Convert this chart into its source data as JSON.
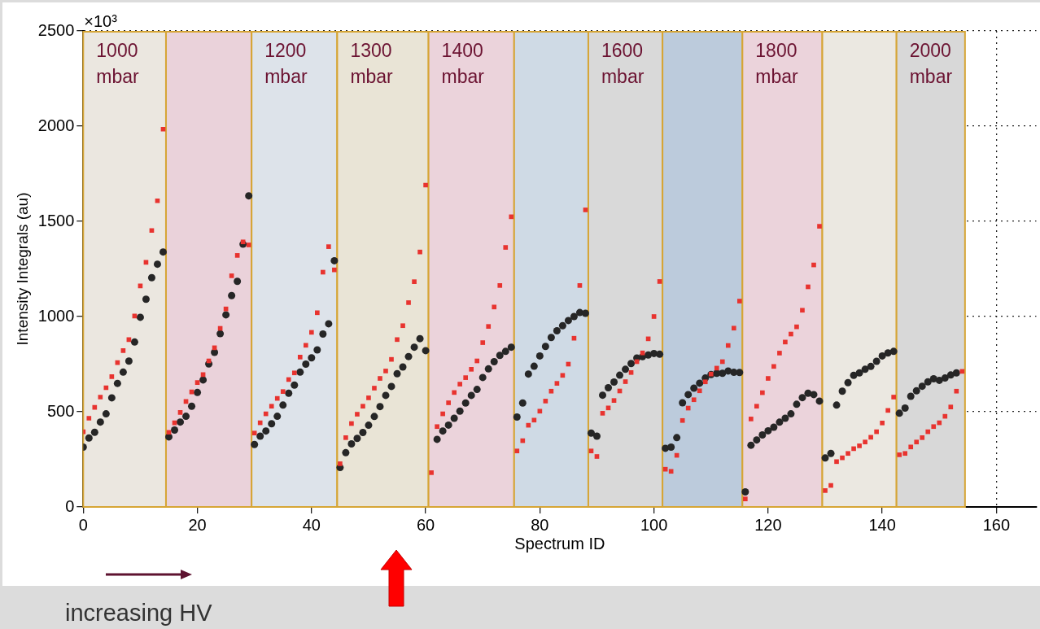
{
  "chart_data": {
    "type": "scatter",
    "xlabel": "Spectrum ID",
    "ylabel": "Intensity Integrals (au)",
    "x": [
      0,
      1,
      2,
      3,
      4,
      5,
      6,
      7,
      8,
      9,
      10,
      11,
      12,
      13,
      14,
      15,
      16,
      17,
      18,
      19,
      20,
      21,
      22,
      23,
      24,
      25,
      26,
      27,
      28,
      29,
      30,
      31,
      32,
      33,
      34,
      35,
      36,
      37,
      38,
      39,
      40,
      41,
      42,
      43,
      44,
      45,
      46,
      47,
      48,
      49,
      50,
      51,
      52,
      53,
      54,
      55,
      56,
      57,
      58,
      59,
      60,
      61,
      62,
      63,
      64,
      65,
      66,
      67,
      68,
      69,
      70,
      71,
      72,
      73,
      74,
      75,
      76,
      77,
      78,
      79,
      80,
      81,
      82,
      83,
      84,
      85,
      86,
      87,
      88,
      89,
      90,
      91,
      92,
      93,
      94,
      95,
      96,
      97,
      98,
      99,
      100,
      101,
      102,
      103,
      104,
      105,
      106,
      107,
      108,
      109,
      110,
      111,
      112,
      113,
      114,
      115,
      116,
      117,
      118,
      119,
      120,
      121,
      122,
      123,
      124,
      125,
      126,
      127,
      128,
      129,
      130,
      131,
      132,
      133,
      134,
      135,
      136,
      137,
      138,
      139,
      140,
      141,
      142,
      143,
      144,
      145,
      146,
      147,
      148,
      149,
      150,
      151,
      152,
      153,
      154
    ],
    "series": [
      {
        "color": "#262626",
        "marker": "circle",
        "values": [
          314,
          362,
          392,
          446,
          489,
          573,
          649,
          708,
          766,
          866,
          996,
          1091,
          1204,
          1275,
          1339,
          368,
          404,
          446,
          476,
          529,
          601,
          667,
          751,
          812,
          910,
          1009,
          1110,
          1185,
          1380,
          1634,
          328,
          372,
          399,
          437,
          476,
          535,
          597,
          640,
          708,
          750,
          783,
          825,
          908,
          962,
          1293,
          207,
          285,
          331,
          360,
          391,
          429,
          475,
          527,
          586,
          633,
          700,
          735,
          790,
          839,
          884,
          821,
          null,
          355,
          399,
          430,
          466,
          503,
          546,
          586,
          617,
          680,
          725,
          763,
          796,
          817,
          839,
          472,
          546,
          698,
          739,
          793,
          843,
          890,
          925,
          952,
          979,
          1000,
          1021,
          1017,
          388,
          372,
          587,
          626,
          656,
          692,
          723,
          753,
          782,
          789,
          798,
          806,
          802,
          308,
          314,
          364,
          547,
          590,
          624,
          650,
          677,
          695,
          702,
          702,
          714,
          707,
          706,
          79,
          324,
          352,
          378,
          400,
          419,
          445,
          466,
          489,
          539,
          574,
          597,
          590,
          556,
          257,
          281,
          535,
          608,
          653,
          691,
          704,
          723,
          738,
          765,
          793,
          809,
          817,
          492,
          519,
          581,
          610,
          634,
          657,
          673,
          665,
          677,
          693,
          704,
          null
        ]
      },
      {
        "color": "#e8332f",
        "marker": "square",
        "values": [
          395,
          466,
          523,
          577,
          626,
          684,
          758,
          821,
          879,
          1003,
          1161,
          1285,
          1452,
          1608,
          1984,
          392,
          442,
          496,
          554,
          604,
          653,
          695,
          767,
          836,
          938,
          1040,
          1214,
          1321,
          1392,
          1376,
          388,
          442,
          489,
          529,
          570,
          606,
          669,
          704,
          787,
          849,
          917,
          1020,
          1233,
          1367,
          1245,
          227,
          364,
          438,
          487,
          529,
          573,
          624,
          675,
          714,
          775,
          879,
          952,
          1073,
          1183,
          1339,
          1690,
          180,
          422,
          489,
          547,
          601,
          645,
          679,
          723,
          767,
          863,
          948,
          1050,
          1163,
          1363,
          1524,
          294,
          348,
          429,
          456,
          503,
          556,
          608,
          649,
          691,
          750,
          886,
          1163,
          1560,
          294,
          265,
          492,
          520,
          559,
          609,
          658,
          706,
          763,
          809,
          883,
          1000,
          1184,
          198,
          187,
          271,
          454,
          519,
          563,
          610,
          657,
          698,
          729,
          763,
          848,
          939,
          1081,
          42,
          462,
          529,
          600,
          675,
          738,
          808,
          866,
          908,
          946,
          1033,
          1156,
          1271,
          1474,
          86,
          113,
          238,
          258,
          281,
          306,
          321,
          341,
          366,
          395,
          441,
          507,
          577,
          274,
          281,
          315,
          341,
          364,
          395,
          422,
          442,
          476,
          525,
          608,
          712
        ]
      }
    ],
    "xlim": [
      0,
      167
    ],
    "xticks": [
      0,
      20,
      40,
      60,
      80,
      100,
      120,
      140,
      160
    ],
    "ylim": [
      0,
      2500
    ],
    "yticks": [
      0,
      500,
      1000,
      1500,
      2000,
      2500
    ],
    "grid": true,
    "bands": [
      {
        "axis": "x",
        "from": 0,
        "to": 14.5,
        "label": "1000 mbar",
        "color": "#ebe7e0"
      },
      {
        "axis": "x",
        "from": 14.5,
        "to": 29.5,
        "color": "#ead2da"
      },
      {
        "axis": "x",
        "from": 29.5,
        "to": 44.5,
        "label": "1200 mbar",
        "color": "#dde3ea"
      },
      {
        "axis": "x",
        "from": 44.5,
        "to": 60.5,
        "label": "1300 mbar",
        "color": "#e9e4d6"
      },
      {
        "axis": "x",
        "from": 60.5,
        "to": 75.5,
        "label": "1400 mbar",
        "color": "#ebd3db"
      },
      {
        "axis": "x",
        "from": 75.5,
        "to": 88.5,
        "color": "#cfdae5"
      },
      {
        "axis": "x",
        "from": 88.5,
        "to": 101.5,
        "label": "1600 mbar",
        "color": "#d9d9d9"
      },
      {
        "axis": "x",
        "from": 101.5,
        "to": 115.5,
        "color": "#bccbdc"
      },
      {
        "axis": "x",
        "from": 115.5,
        "to": 129.5,
        "label": "1800 mbar",
        "color": "#ebd3db"
      },
      {
        "axis": "x",
        "from": 129.5,
        "to": 142.5,
        "color": "#ebe8e1"
      },
      {
        "axis": "x",
        "from": 142.5,
        "to": 154.5,
        "label": "2000 mbar",
        "color": "#d8d8d8"
      }
    ],
    "annotations": [
      "×10³",
      "increasing HV"
    ]
  }
}
